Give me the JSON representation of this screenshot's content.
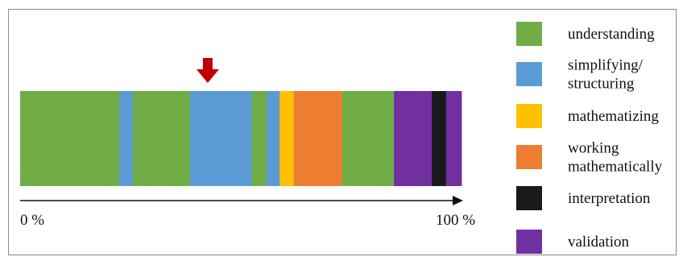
{
  "segments": [
    {
      "phase": "understanding",
      "percent": 22.5
    },
    {
      "phase": "simplifying",
      "percent": 3.0
    },
    {
      "phase": "understanding",
      "percent": 13.0
    },
    {
      "phase": "simplifying",
      "percent": 14.0
    },
    {
      "phase": "understanding",
      "percent": 3.3
    },
    {
      "phase": "simplifying",
      "percent": 3.0
    },
    {
      "phase": "mathematizing",
      "percent": 3.2
    },
    {
      "phase": "working",
      "percent": 11.0
    },
    {
      "phase": "understanding",
      "percent": 11.7
    },
    {
      "phase": "validation",
      "percent": 8.6
    },
    {
      "phase": "interpretation",
      "percent": 3.2
    },
    {
      "phase": "validation",
      "percent": 3.5
    }
  ],
  "marker": {
    "position_percent": 42.5,
    "color": "#c00000",
    "icon": "down-arrow-icon"
  },
  "axis": {
    "start_label": "0 %",
    "end_label": "100 %"
  },
  "legend": [
    {
      "key": "understanding",
      "lines": [
        "understanding"
      ],
      "color": "#70ad47"
    },
    {
      "key": "simplifying",
      "lines": [
        "simplifying/",
        "structuring"
      ],
      "color": "#5b9bd5"
    },
    {
      "key": "mathematizing",
      "lines": [
        "mathematizing"
      ],
      "color": "#ffc000"
    },
    {
      "key": "working",
      "lines": [
        "working",
        "mathematically"
      ],
      "color": "#ed7d31"
    },
    {
      "key": "interpretation",
      "lines": [
        "interpretation"
      ],
      "color": "#1a1a1a"
    },
    {
      "key": "validation",
      "lines": [
        "validation"
      ],
      "color": "#7030a0"
    }
  ]
}
